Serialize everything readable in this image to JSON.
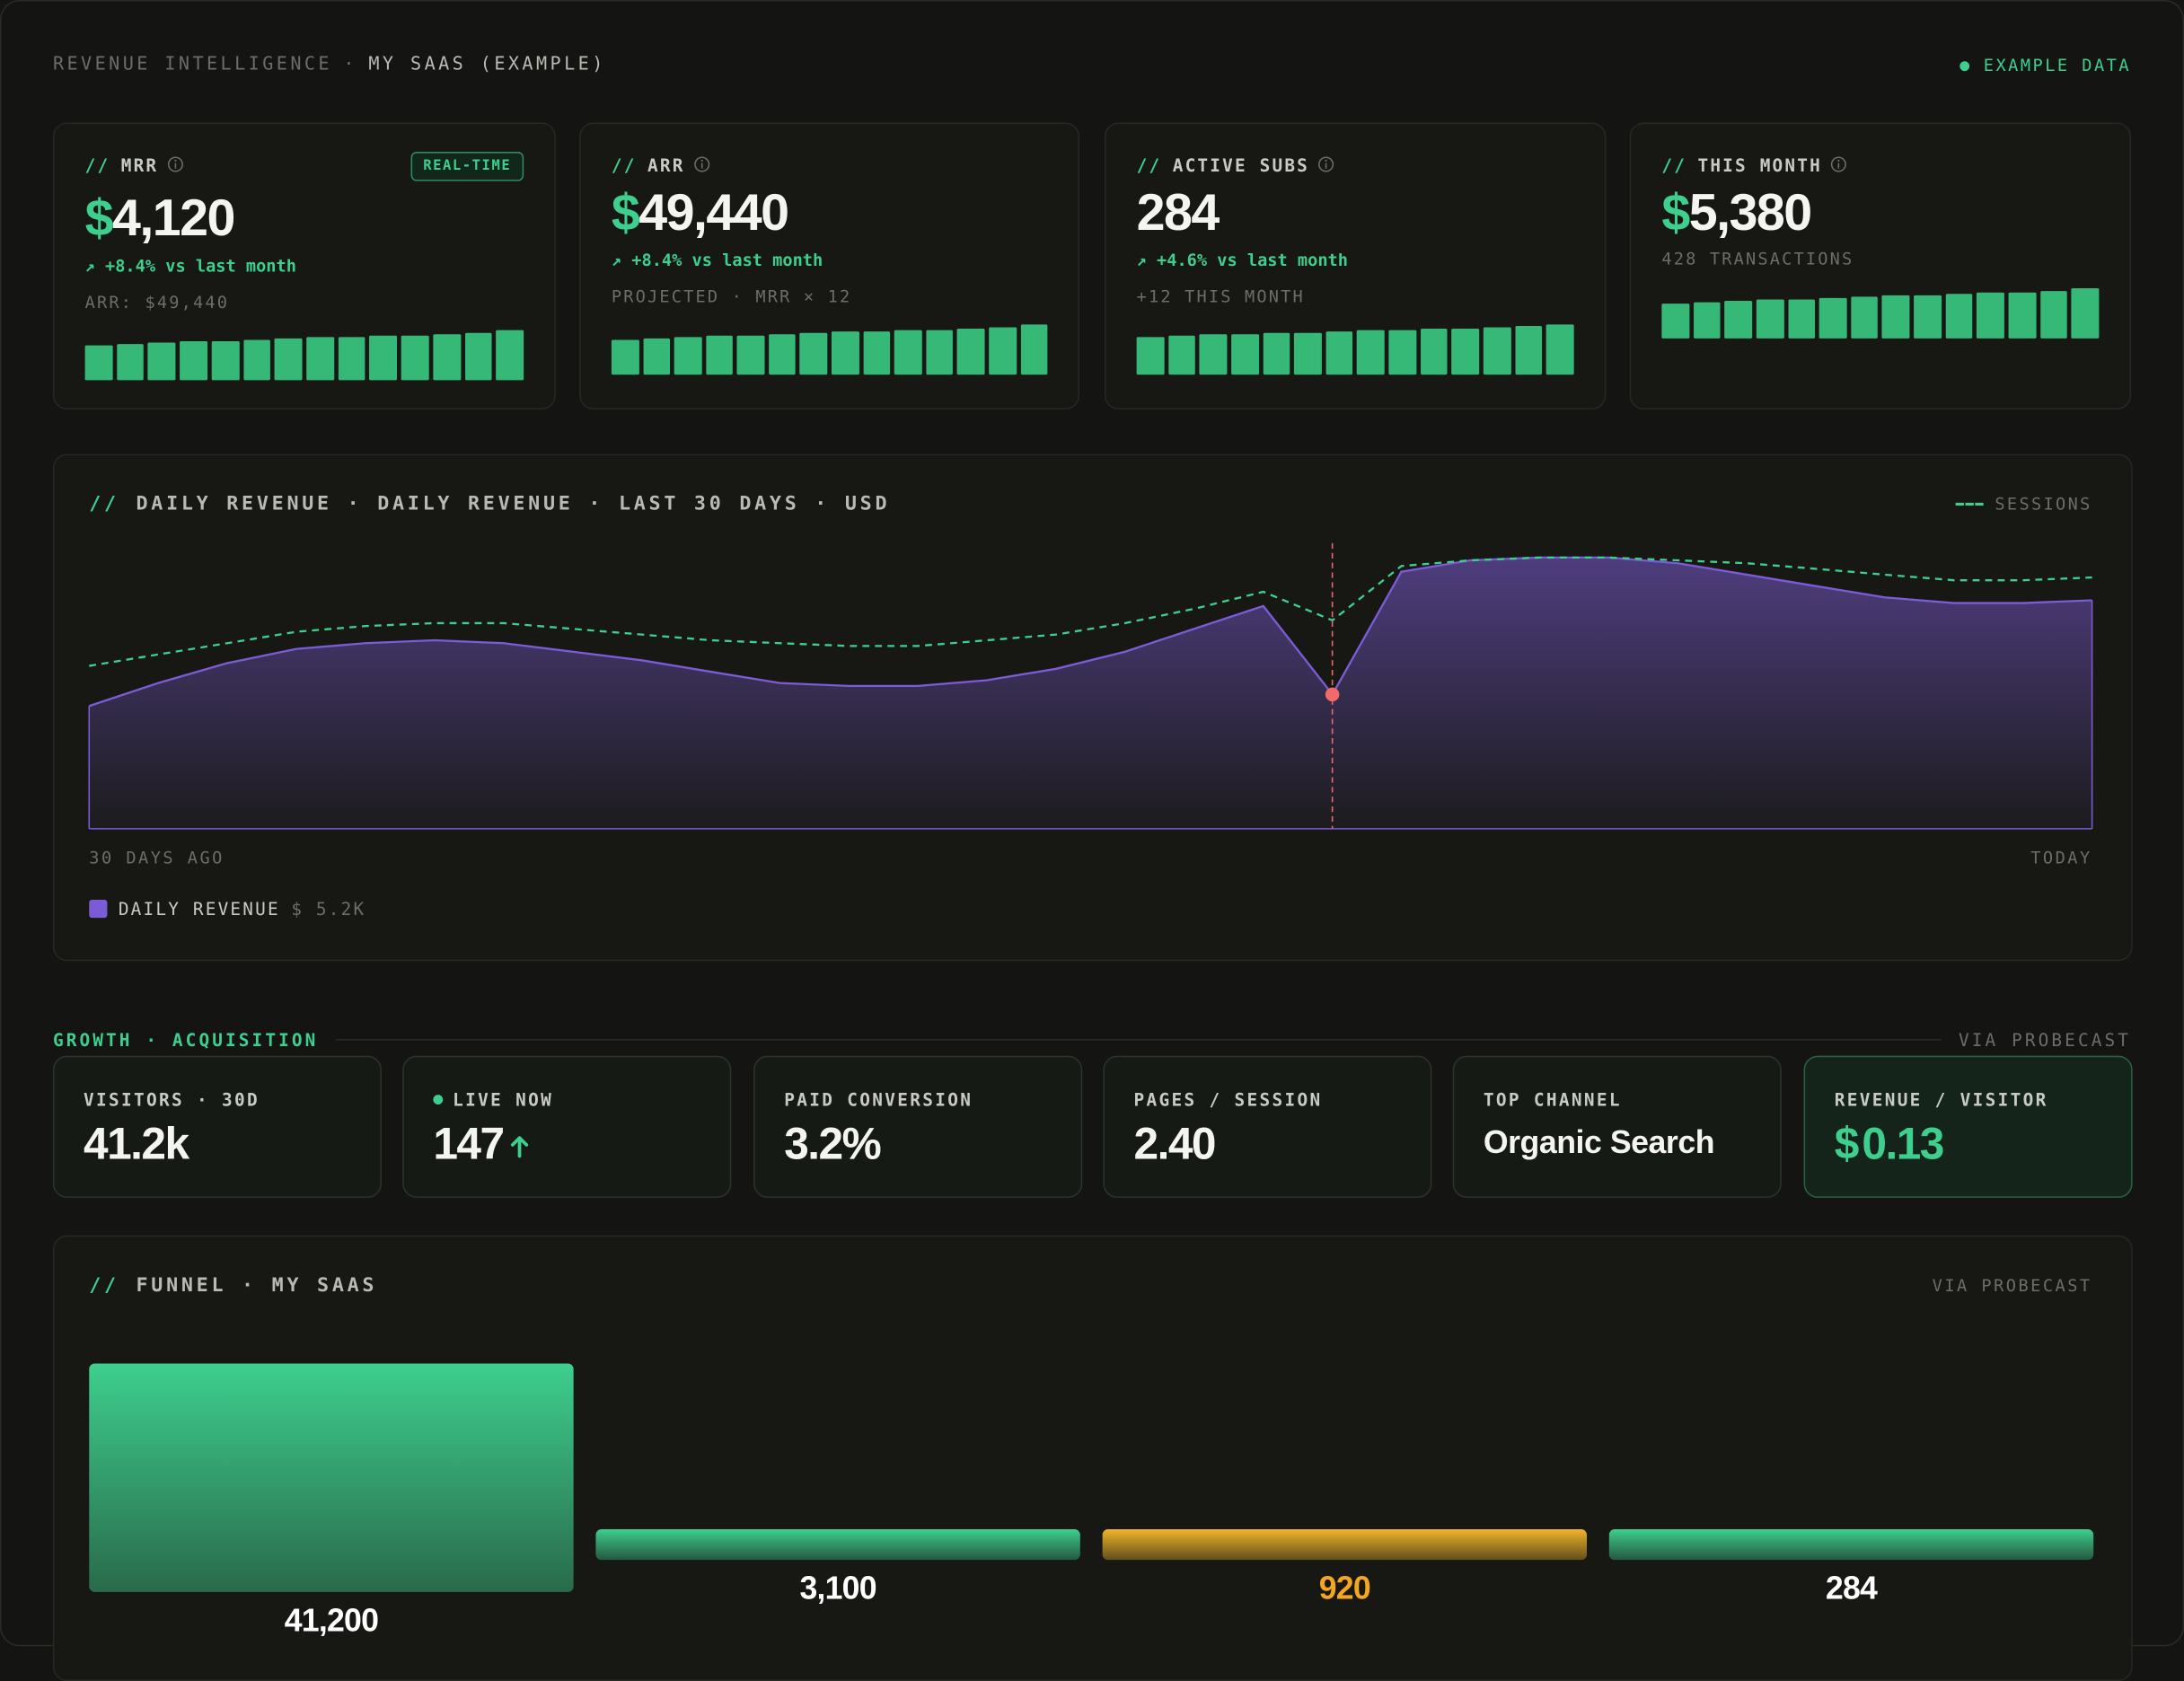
{
  "prefix": "//",
  "header": {
    "title": "REVENUE INTELLIGENCE",
    "separator": "·",
    "subtitle": "MY SAAS (EXAMPLE)",
    "badge": "EXAMPLE DATA"
  },
  "kpis": [
    {
      "label": "MRR",
      "tag": "REAL-TIME",
      "currency": "$",
      "value": "4,120",
      "change": "↗ +8.4% vs last month",
      "note": "ARR: $49,440",
      "bars": [
        25,
        26,
        27,
        28,
        28,
        29,
        30,
        31,
        31,
        32,
        32,
        33,
        34,
        36
      ]
    },
    {
      "label": "ARR",
      "currency": "$",
      "value": "49,440",
      "change": "↗ +8.4% vs last month",
      "note": "PROJECTED · MRR × 12",
      "bars": [
        25,
        26,
        27,
        28,
        28,
        29,
        30,
        31,
        31,
        32,
        32,
        33,
        34,
        36
      ]
    },
    {
      "label": "ACTIVE SUBS",
      "value": "284",
      "change": "↗ +4.6% vs last month",
      "note": "+12 THIS MONTH",
      "bars": [
        27,
        28,
        29,
        29,
        30,
        30,
        31,
        32,
        32,
        33,
        33,
        34,
        35,
        36
      ]
    },
    {
      "label": "THIS MONTH",
      "currency": "$",
      "value": "5,380",
      "note": "428 TRANSACTIONS",
      "bars": [
        25,
        26,
        27,
        28,
        28,
        29,
        30,
        31,
        31,
        32,
        33,
        33,
        34,
        36
      ]
    }
  ],
  "growth": {
    "title": "GROWTH · ACQUISITION",
    "source": "VIA PROBECAST",
    "tiles": [
      {
        "label": "VISITORS · 30D",
        "value": "41.2k"
      },
      {
        "label": "LIVE NOW",
        "value": "147",
        "live": true
      },
      {
        "label": "PAID CONVERSION",
        "value": "3.2%"
      },
      {
        "label": "PAGES / SESSION",
        "value": "2.40"
      },
      {
        "label": "TOP CHANNEL",
        "value": "Organic Search"
      },
      {
        "label": "REVENUE / VISITOR",
        "currency": "$",
        "value": "0.13",
        "highlight": true
      }
    ]
  },
  "chart_data": [
    {
      "type": "area",
      "title": "DAILY REVENUE · DAILY REVENUE · LAST 30 DAYS · USD",
      "x_labels": [
        "30 DAYS AGO",
        "TODAY"
      ],
      "ylim": [
        0,
        100
      ],
      "marker_index": 18,
      "marker_color": "#f06a6a",
      "series": [
        {
          "name": "DAILY REVENUE",
          "legend_value": "$ 5.2K",
          "color": "#7c5cd6",
          "values": [
            43,
            51,
            58,
            63,
            65,
            66,
            65,
            62,
            59,
            55,
            51,
            50,
            50,
            52,
            56,
            62,
            70,
            78,
            47,
            90,
            94,
            95,
            95,
            93,
            89,
            85,
            81,
            79,
            79,
            80
          ]
        },
        {
          "name": "SESSIONS",
          "color": "#3ecf8e",
          "dashed": true,
          "values": [
            57,
            61,
            65,
            69,
            71,
            72,
            72,
            70,
            68,
            66,
            65,
            64,
            64,
            66,
            68,
            72,
            77,
            83,
            73,
            92,
            94,
            95,
            95,
            94,
            93,
            91,
            89,
            87,
            87,
            88
          ]
        }
      ]
    },
    {
      "type": "funnel",
      "title": "FUNNEL · MY SAAS",
      "source": "VIA PROBECAST",
      "values": [
        41200,
        3100,
        920,
        284
      ],
      "value_labels": [
        "41,200",
        "3,100",
        "920",
        "284"
      ],
      "colors": [
        "#3ecf8e",
        "#3ecf8e",
        "#f0b429",
        "#3ecf8e"
      ],
      "label_colors": [
        "#ffffff",
        "#ffffff",
        "#f5a524",
        "#ffffff"
      ]
    }
  ]
}
